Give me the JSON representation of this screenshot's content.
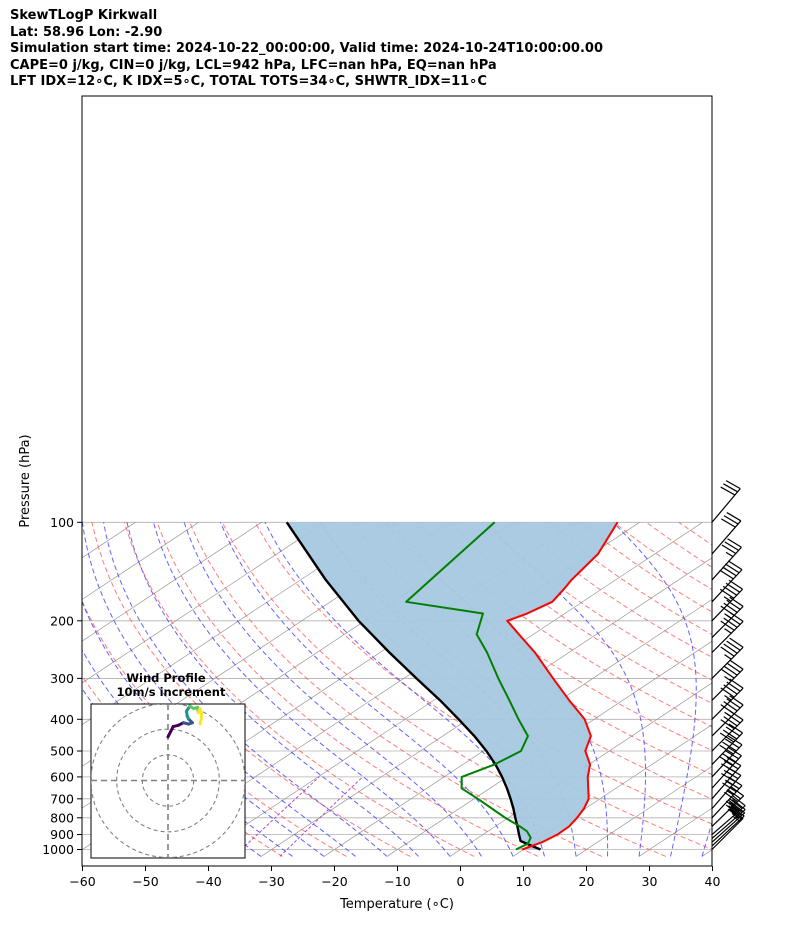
{
  "header": {
    "lines": [
      "SkewTLogP Kirkwall",
      "Lat: 58.96   Lon: -2.90",
      "Simulation start time: 2024-10-22_00:00:00, Valid time: 2024-10-24T10:00:00.00",
      "CAPE=0 j/kg, CIN=0 j/kg, LCL=942 hPa, LFC=nan hPa, EQ=nan hPa",
      "LFT IDX=12∘C, K IDX=5∘C, TOTAL TOTS=34∘C, SHWTR_IDX=11∘C"
    ]
  },
  "chart_data": {
    "type": "line",
    "subtype": "skew-T log-P diagram",
    "xlabel": "Temperature (∘C)",
    "ylabel": "Pressure (hPa)",
    "xlim": [
      -60,
      40
    ],
    "ylim": [
      1050,
      100
    ],
    "y_scale": "log",
    "x_ticks": [
      -60,
      -50,
      -40,
      -30,
      -20,
      -10,
      0,
      10,
      20,
      30,
      40
    ],
    "y_ticks": [
      1000,
      900,
      800,
      700,
      600,
      500,
      400,
      300,
      200,
      100
    ],
    "grid": true,
    "series": [
      {
        "kind": "temperature",
        "color": "#ff0000",
        "points": [
          {
            "p": 1000,
            "t": 9.8
          },
          {
            "p": 950,
            "t": 11.2
          },
          {
            "p": 900,
            "t": 11.8
          },
          {
            "p": 850,
            "t": 11.7
          },
          {
            "p": 800,
            "t": 10.9
          },
          {
            "p": 750,
            "t": 9.8
          },
          {
            "p": 700,
            "t": 8.2
          },
          {
            "p": 650,
            "t": 5.6
          },
          {
            "p": 600,
            "t": 2.8
          },
          {
            "p": 550,
            "t": 0.2
          },
          {
            "p": 500,
            "t": -3.8
          },
          {
            "p": 450,
            "t": -6.5
          },
          {
            "p": 400,
            "t": -11.5
          },
          {
            "p": 350,
            "t": -18.5
          },
          {
            "p": 300,
            "t": -26.3
          },
          {
            "p": 250,
            "t": -35.4
          },
          {
            "p": 220,
            "t": -42.3
          },
          {
            "p": 200,
            "t": -47.4
          },
          {
            "p": 190,
            "t": -46.0
          },
          {
            "p": 175,
            "t": -44.8
          },
          {
            "p": 160,
            "t": -46.0
          },
          {
            "p": 150,
            "t": -47.0
          },
          {
            "p": 125,
            "t": -49.0
          },
          {
            "p": 100,
            "t": -53.5
          }
        ]
      },
      {
        "kind": "dewpoint",
        "color": "#008000",
        "points": [
          {
            "p": 1000,
            "t": 8.8
          },
          {
            "p": 960,
            "t": 9.3
          },
          {
            "p": 920,
            "t": 8.3
          },
          {
            "p": 880,
            "t": 6.2
          },
          {
            "p": 850,
            "t": 3.9
          },
          {
            "p": 800,
            "t": -0.5
          },
          {
            "p": 750,
            "t": -4.8
          },
          {
            "p": 700,
            "t": -9.4
          },
          {
            "p": 650,
            "t": -14.5
          },
          {
            "p": 600,
            "t": -17.2
          },
          {
            "p": 550,
            "t": -15.0
          },
          {
            "p": 500,
            "t": -14.0
          },
          {
            "p": 450,
            "t": -16.5
          },
          {
            "p": 400,
            "t": -22.0
          },
          {
            "p": 350,
            "t": -28.0
          },
          {
            "p": 300,
            "t": -35.0
          },
          {
            "p": 250,
            "t": -43.0
          },
          {
            "p": 220,
            "t": -49.0
          },
          {
            "p": 190,
            "t": -53.0
          },
          {
            "p": 175,
            "t": -68.0
          },
          {
            "p": 100,
            "t": -73.0
          }
        ]
      },
      {
        "kind": "parcel",
        "color": "#000000",
        "points": [
          {
            "p": 1000,
            "t": 12.7
          },
          {
            "p": 970,
            "t": 10.0
          },
          {
            "p": 942,
            "t": 7.5
          },
          {
            "p": 900,
            "t": 5.7
          },
          {
            "p": 850,
            "t": 3.5
          },
          {
            "p": 800,
            "t": 1.1
          },
          {
            "p": 750,
            "t": -1.4
          },
          {
            "p": 700,
            "t": -4.2
          },
          {
            "p": 650,
            "t": -7.3
          },
          {
            "p": 600,
            "t": -10.8
          },
          {
            "p": 550,
            "t": -14.8
          },
          {
            "p": 500,
            "t": -19.5
          },
          {
            "p": 450,
            "t": -25.0
          },
          {
            "p": 400,
            "t": -31.5
          },
          {
            "p": 350,
            "t": -39.0
          },
          {
            "p": 300,
            "t": -48.0
          },
          {
            "p": 250,
            "t": -58.5
          },
          {
            "p": 200,
            "t": -71.0
          },
          {
            "p": 150,
            "t": -86.0
          },
          {
            "p": 100,
            "t": -106.0
          }
        ]
      }
    ],
    "shaded_region": {
      "between": [
        "temperature",
        "parcel"
      ],
      "color": "#a6c8e0"
    },
    "background_lines": {
      "isotherms": {
        "color": "#999999"
      },
      "dry_adiabats": {
        "color": "#ff5050"
      },
      "moist_adiabats": {
        "color": "#3c3cff"
      },
      "mixing_ratio": {
        "color": "#a040c0"
      }
    },
    "wind_barbs": {
      "color": "#000000",
      "levels": [
        {
          "p": 1000,
          "speed": 17,
          "dir": 225
        },
        {
          "p": 975,
          "speed": 22,
          "dir": 227
        },
        {
          "p": 950,
          "speed": 27,
          "dir": 228
        },
        {
          "p": 925,
          "speed": 32,
          "dir": 229
        },
        {
          "p": 900,
          "speed": 35,
          "dir": 229
        },
        {
          "p": 850,
          "speed": 35,
          "dir": 226
        },
        {
          "p": 800,
          "speed": 35,
          "dir": 223
        },
        {
          "p": 750,
          "speed": 36,
          "dir": 221
        },
        {
          "p": 700,
          "speed": 37,
          "dir": 221
        },
        {
          "p": 650,
          "speed": 38,
          "dir": 222
        },
        {
          "p": 600,
          "speed": 39,
          "dir": 223
        },
        {
          "p": 550,
          "speed": 40,
          "dir": 224
        },
        {
          "p": 500,
          "speed": 41,
          "dir": 225
        },
        {
          "p": 450,
          "speed": 43,
          "dir": 225
        },
        {
          "p": 400,
          "speed": 44,
          "dir": 225
        },
        {
          "p": 350,
          "speed": 44,
          "dir": 225
        },
        {
          "p": 300,
          "speed": 45,
          "dir": 225
        },
        {
          "p": 250,
          "speed": 45,
          "dir": 225
        },
        {
          "p": 225,
          "speed": 45,
          "dir": 225
        },
        {
          "p": 200,
          "speed": 44,
          "dir": 224
        },
        {
          "p": 175,
          "speed": 40,
          "dir": 223
        },
        {
          "p": 150,
          "speed": 35,
          "dir": 222
        },
        {
          "p": 125,
          "speed": 32,
          "dir": 221
        },
        {
          "p": 100,
          "speed": 28,
          "dir": 220
        }
      ]
    },
    "hodograph": {
      "title": "Wind Profile",
      "subtitle": "10m/s increment",
      "ring_increment": 10,
      "ring_count": 3,
      "limit": 30,
      "colormap": [
        "#440154",
        "#3b528b",
        "#21918c",
        "#5ec962",
        "#fde725"
      ],
      "points": [
        {
          "u": 0,
          "v": 17
        },
        {
          "u": 1,
          "v": 19
        },
        {
          "u": 2,
          "v": 21
        },
        {
          "u": 4,
          "v": 21.5
        },
        {
          "u": 6,
          "v": 22.5
        },
        {
          "u": 8,
          "v": 22
        },
        {
          "u": 9.5,
          "v": 22.5
        },
        {
          "u": 8,
          "v": 24
        },
        {
          "u": 7.5,
          "v": 25
        },
        {
          "u": 7.2,
          "v": 27
        },
        {
          "u": 8.5,
          "v": 29
        },
        {
          "u": 10,
          "v": 28
        },
        {
          "u": 11.5,
          "v": 28.5
        },
        {
          "u": 11.8,
          "v": 26.5
        },
        {
          "u": 12.5,
          "v": 28
        },
        {
          "u": 13,
          "v": 26
        },
        {
          "u": 13,
          "v": 24
        },
        {
          "u": 12.5,
          "v": 22
        }
      ]
    }
  }
}
